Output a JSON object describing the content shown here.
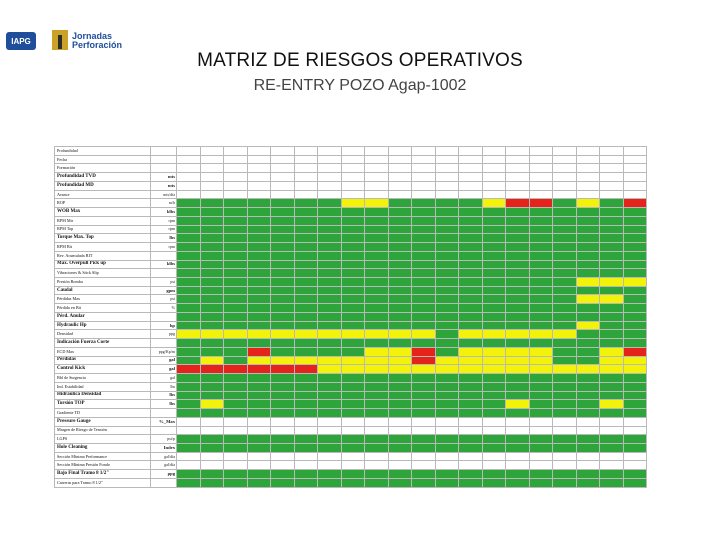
{
  "header": {
    "logo_left_text": "IAPG",
    "logo_right_line1": "Jornadas",
    "logo_right_line2": "Perforación",
    "title": "MATRIZ DE RIESGOS OPERATIVOS",
    "subtitle": "RE-ENTRY POZO Agap-1002"
  },
  "colors": {
    "green": "#2ea53a",
    "yellow": "#f2f20a",
    "red": "#e4241b",
    "white": "#ffffff"
  },
  "matrix": {
    "rows": [
      {
        "label": "Profundidad",
        "unit": "",
        "bold": false,
        "header": true,
        "cells": [
          "w",
          "w",
          "w",
          "w",
          "w",
          "w",
          "w",
          "w",
          "w",
          "w",
          "w",
          "w",
          "w",
          "w",
          "w",
          "w",
          "w",
          "w",
          "w",
          "w"
        ]
      },
      {
        "label": "Fecha",
        "unit": "",
        "bold": false,
        "header": true,
        "cells": [
          "w",
          "w",
          "w",
          "w",
          "w",
          "w",
          "w",
          "w",
          "w",
          "w",
          "w",
          "w",
          "w",
          "w",
          "w",
          "w",
          "w",
          "w",
          "w",
          "w"
        ]
      },
      {
        "label": "Formación",
        "unit": "",
        "bold": false,
        "cells": [
          "w",
          "w",
          "w",
          "w",
          "w",
          "w",
          "w",
          "w",
          "w",
          "w",
          "w",
          "w",
          "w",
          "w",
          "w",
          "w",
          "w",
          "w",
          "w",
          "w"
        ]
      },
      {
        "label": "Profundidad TVD",
        "unit": "mts",
        "bold": true,
        "cells": [
          "w",
          "w",
          "w",
          "w",
          "w",
          "w",
          "w",
          "w",
          "w",
          "w",
          "w",
          "w",
          "w",
          "w",
          "w",
          "w",
          "w",
          "w",
          "w",
          "w"
        ]
      },
      {
        "label": "Profundidad MD",
        "unit": "mts",
        "bold": true,
        "cells": [
          "w",
          "w",
          "w",
          "w",
          "w",
          "w",
          "w",
          "w",
          "w",
          "w",
          "w",
          "w",
          "w",
          "w",
          "w",
          "w",
          "w",
          "w",
          "w",
          "w"
        ]
      },
      {
        "label": "Avance",
        "unit": "mts/día",
        "bold": false,
        "cells": [
          "w",
          "w",
          "w",
          "w",
          "w",
          "w",
          "w",
          "w",
          "w",
          "w",
          "w",
          "w",
          "w",
          "w",
          "w",
          "w",
          "w",
          "w",
          "w",
          "w"
        ]
      },
      {
        "label": "ROP",
        "unit": "m/h",
        "bold": false,
        "cells": [
          "g",
          "g",
          "g",
          "g",
          "g",
          "g",
          "g",
          "y",
          "y",
          "g",
          "g",
          "g",
          "g",
          "y",
          "r",
          "r",
          "g",
          "y",
          "g",
          "r"
        ]
      },
      {
        "label": "WOB Max",
        "unit": "klbs",
        "bold": true,
        "cells": [
          "g",
          "g",
          "g",
          "g",
          "g",
          "g",
          "g",
          "g",
          "g",
          "g",
          "g",
          "g",
          "g",
          "g",
          "g",
          "g",
          "g",
          "g",
          "g",
          "g"
        ]
      },
      {
        "label": "RPM Mtr",
        "unit": "rpm",
        "bold": false,
        "cells": [
          "g",
          "g",
          "g",
          "g",
          "g",
          "g",
          "g",
          "g",
          "g",
          "g",
          "g",
          "g",
          "g",
          "g",
          "g",
          "g",
          "g",
          "g",
          "g",
          "g"
        ]
      },
      {
        "label": "RPM Top",
        "unit": "rpm",
        "bold": false,
        "cells": [
          "g",
          "g",
          "g",
          "g",
          "g",
          "g",
          "g",
          "g",
          "g",
          "g",
          "g",
          "g",
          "g",
          "g",
          "g",
          "g",
          "g",
          "g",
          "g",
          "g"
        ]
      },
      {
        "label": "Torque Max. Top",
        "unit": "lbs",
        "bold": true,
        "cells": [
          "g",
          "g",
          "g",
          "g",
          "g",
          "g",
          "g",
          "g",
          "g",
          "g",
          "g",
          "g",
          "g",
          "g",
          "g",
          "g",
          "g",
          "g",
          "g",
          "g"
        ]
      },
      {
        "label": "RPM Bit",
        "unit": "rpm",
        "bold": false,
        "cells": [
          "g",
          "g",
          "g",
          "g",
          "g",
          "g",
          "g",
          "g",
          "g",
          "g",
          "g",
          "g",
          "g",
          "g",
          "g",
          "g",
          "g",
          "g",
          "g",
          "g"
        ]
      },
      {
        "label": "Rev. Acumulada BIT",
        "unit": "",
        "bold": false,
        "cells": [
          "g",
          "g",
          "g",
          "g",
          "g",
          "g",
          "g",
          "g",
          "g",
          "g",
          "g",
          "g",
          "g",
          "g",
          "g",
          "g",
          "g",
          "g",
          "g",
          "g"
        ]
      },
      {
        "label": "Max. Overpull Pick up",
        "unit": "klbs",
        "bold": true,
        "cells": [
          "g",
          "g",
          "g",
          "g",
          "g",
          "g",
          "g",
          "g",
          "g",
          "g",
          "g",
          "g",
          "g",
          "g",
          "g",
          "g",
          "g",
          "g",
          "g",
          "g"
        ]
      },
      {
        "label": "Vibraciones & Stick Slip",
        "unit": "",
        "bold": false,
        "cells": [
          "g",
          "g",
          "g",
          "g",
          "g",
          "g",
          "g",
          "g",
          "g",
          "g",
          "g",
          "g",
          "g",
          "g",
          "g",
          "g",
          "g",
          "g",
          "g",
          "g"
        ]
      },
      {
        "label": "Presión Bomba",
        "unit": "psi",
        "bold": false,
        "cells": [
          "g",
          "g",
          "g",
          "g",
          "g",
          "g",
          "g",
          "g",
          "g",
          "g",
          "g",
          "g",
          "g",
          "g",
          "g",
          "g",
          "g",
          "y",
          "y",
          "y"
        ]
      },
      {
        "label": "Caudal",
        "unit": "gpm",
        "bold": true,
        "cells": [
          "g",
          "g",
          "g",
          "g",
          "g",
          "g",
          "g",
          "g",
          "g",
          "g",
          "g",
          "g",
          "g",
          "g",
          "g",
          "g",
          "g",
          "g",
          "g",
          "g"
        ]
      },
      {
        "label": "Pérdidas Max",
        "unit": "psi",
        "bold": false,
        "cells": [
          "g",
          "g",
          "g",
          "g",
          "g",
          "g",
          "g",
          "g",
          "g",
          "g",
          "g",
          "g",
          "g",
          "g",
          "g",
          "g",
          "g",
          "y",
          "y",
          "g"
        ]
      },
      {
        "label": "Pérdida en Bit",
        "unit": "%",
        "bold": false,
        "cells": [
          "g",
          "g",
          "g",
          "g",
          "g",
          "g",
          "g",
          "g",
          "g",
          "g",
          "g",
          "g",
          "g",
          "g",
          "g",
          "g",
          "g",
          "g",
          "g",
          "g"
        ]
      },
      {
        "label": "Pérd. Anular",
        "unit": "",
        "bold": true,
        "cells": [
          "g",
          "g",
          "g",
          "g",
          "g",
          "g",
          "g",
          "g",
          "g",
          "g",
          "g",
          "g",
          "g",
          "g",
          "g",
          "g",
          "g",
          "g",
          "g",
          "g"
        ]
      },
      {
        "label": "Hydraulic Hp",
        "unit": "hp",
        "bold": true,
        "cells": [
          "g",
          "g",
          "g",
          "g",
          "g",
          "g",
          "g",
          "g",
          "g",
          "g",
          "g",
          "g",
          "g",
          "g",
          "g",
          "g",
          "g",
          "y",
          "g",
          "g"
        ]
      },
      {
        "label": "Densidad",
        "unit": "ppg",
        "bold": false,
        "cells": [
          "y",
          "y",
          "y",
          "y",
          "y",
          "y",
          "y",
          "y",
          "y",
          "y",
          "y",
          "g",
          "y",
          "y",
          "y",
          "y",
          "y",
          "g",
          "g",
          "g"
        ]
      },
      {
        "label": "Indicación Fuerza Corte",
        "unit": "",
        "bold": true,
        "cells": [
          "g",
          "g",
          "g",
          "g",
          "g",
          "g",
          "g",
          "g",
          "g",
          "g",
          "g",
          "g",
          "g",
          "g",
          "g",
          "g",
          "g",
          "g",
          "g",
          "g"
        ]
      },
      {
        "label": "ECD Max",
        "unit": "ppg/Kp/m",
        "bold": false,
        "cells": [
          "g",
          "g",
          "g",
          "r",
          "g",
          "g",
          "g",
          "g",
          "y",
          "y",
          "r",
          "g",
          "y",
          "y",
          "y",
          "y",
          "g",
          "g",
          "y",
          "r"
        ]
      },
      {
        "label": "Perdidas",
        "unit": "gal",
        "bold": true,
        "cells": [
          "g",
          "y",
          "g",
          "y",
          "y",
          "y",
          "y",
          "y",
          "y",
          "y",
          "r",
          "y",
          "y",
          "y",
          "y",
          "y",
          "g",
          "g",
          "y",
          "y"
        ]
      },
      {
        "label": "Control Kick",
        "unit": "gal",
        "bold": true,
        "cells": [
          "r",
          "r",
          "r",
          "r",
          "r",
          "r",
          "y",
          "y",
          "y",
          "y",
          "y",
          "y",
          "y",
          "y",
          "y",
          "y",
          "y",
          "y",
          "y",
          "y"
        ]
      },
      {
        "label": "Bbl de Surgencia",
        "unit": "gal",
        "bold": false,
        "cells": [
          "g",
          "g",
          "g",
          "g",
          "g",
          "g",
          "g",
          "g",
          "g",
          "g",
          "g",
          "g",
          "g",
          "g",
          "g",
          "g",
          "g",
          "g",
          "g",
          "g"
        ]
      },
      {
        "label": "Ind. Estabilidad",
        "unit": "lbs",
        "bold": false,
        "cells": [
          "g",
          "g",
          "g",
          "g",
          "g",
          "g",
          "g",
          "g",
          "g",
          "g",
          "g",
          "g",
          "g",
          "g",
          "g",
          "g",
          "g",
          "g",
          "g",
          "g"
        ]
      },
      {
        "label": "Hidraulica Densidad",
        "unit": "lbs",
        "bold": true,
        "cells": [
          "g",
          "g",
          "g",
          "g",
          "g",
          "g",
          "g",
          "g",
          "g",
          "g",
          "g",
          "g",
          "g",
          "g",
          "g",
          "g",
          "g",
          "g",
          "g",
          "g"
        ]
      },
      {
        "label": "Torsión TOP",
        "unit": "lbs",
        "bold": true,
        "cells": [
          "g",
          "y",
          "g",
          "g",
          "g",
          "g",
          "g",
          "g",
          "g",
          "g",
          "g",
          "g",
          "g",
          "g",
          "y",
          "g",
          "g",
          "g",
          "y",
          "g"
        ]
      },
      {
        "label": "Gradiente TD",
        "unit": "",
        "bold": false,
        "cells": [
          "g",
          "g",
          "g",
          "g",
          "g",
          "g",
          "g",
          "g",
          "g",
          "g",
          "g",
          "g",
          "g",
          "g",
          "g",
          "g",
          "g",
          "g",
          "g",
          "g"
        ]
      },
      {
        "label": "Pressure Gauge",
        "unit": "%_Max",
        "bold": true,
        "cells": [
          "w",
          "w",
          "w",
          "w",
          "w",
          "w",
          "w",
          "w",
          "w",
          "w",
          "w",
          "w",
          "w",
          "w",
          "w",
          "w",
          "w",
          "w",
          "w",
          "w"
        ]
      },
      {
        "label": "Margen de Riesgo de Tensión",
        "unit": "",
        "bold": false,
        "cells": [
          "w",
          "w",
          "w",
          "w",
          "w",
          "w",
          "w",
          "w",
          "w",
          "w",
          "w",
          "w",
          "w",
          "w",
          "w",
          "w",
          "w",
          "w",
          "w",
          "w"
        ]
      },
      {
        "label": "LGPS",
        "unit": "psi/p",
        "bold": false,
        "cells": [
          "g",
          "g",
          "g",
          "g",
          "g",
          "g",
          "g",
          "g",
          "g",
          "g",
          "g",
          "g",
          "g",
          "g",
          "g",
          "g",
          "g",
          "g",
          "g",
          "g"
        ]
      },
      {
        "label": "Hole Cleaning",
        "unit": "Index",
        "bold": true,
        "cells": [
          "g",
          "g",
          "g",
          "g",
          "g",
          "g",
          "g",
          "g",
          "g",
          "g",
          "g",
          "g",
          "g",
          "g",
          "g",
          "g",
          "g",
          "g",
          "g",
          "g"
        ]
      },
      {
        "label": "Sección Mínima Performance",
        "unit": "gal/día",
        "bold": false,
        "cells": [
          "w",
          "w",
          "w",
          "w",
          "w",
          "w",
          "w",
          "w",
          "w",
          "w",
          "w",
          "w",
          "w",
          "w",
          "w",
          "w",
          "w",
          "w",
          "w",
          "w"
        ]
      },
      {
        "label": "Sección Mínima Presión Fondo",
        "unit": "gal/día",
        "bold": false,
        "cells": [
          "w",
          "w",
          "w",
          "w",
          "w",
          "w",
          "w",
          "w",
          "w",
          "w",
          "w",
          "w",
          "w",
          "w",
          "w",
          "w",
          "w",
          "w",
          "w",
          "w"
        ]
      },
      {
        "label": "Bajo Final Tramo 8 1/2\"",
        "unit": "ppg",
        "bold": true,
        "cells": [
          "g",
          "g",
          "g",
          "g",
          "g",
          "g",
          "g",
          "g",
          "g",
          "g",
          "g",
          "g",
          "g",
          "g",
          "g",
          "g",
          "g",
          "g",
          "g",
          "g"
        ]
      },
      {
        "label": "Carreras para Tramo 8 1/2\"",
        "unit": "",
        "bold": false,
        "cells": [
          "g",
          "g",
          "g",
          "g",
          "g",
          "g",
          "g",
          "g",
          "g",
          "g",
          "g",
          "g",
          "g",
          "g",
          "g",
          "g",
          "g",
          "g",
          "g",
          "g"
        ]
      }
    ]
  }
}
